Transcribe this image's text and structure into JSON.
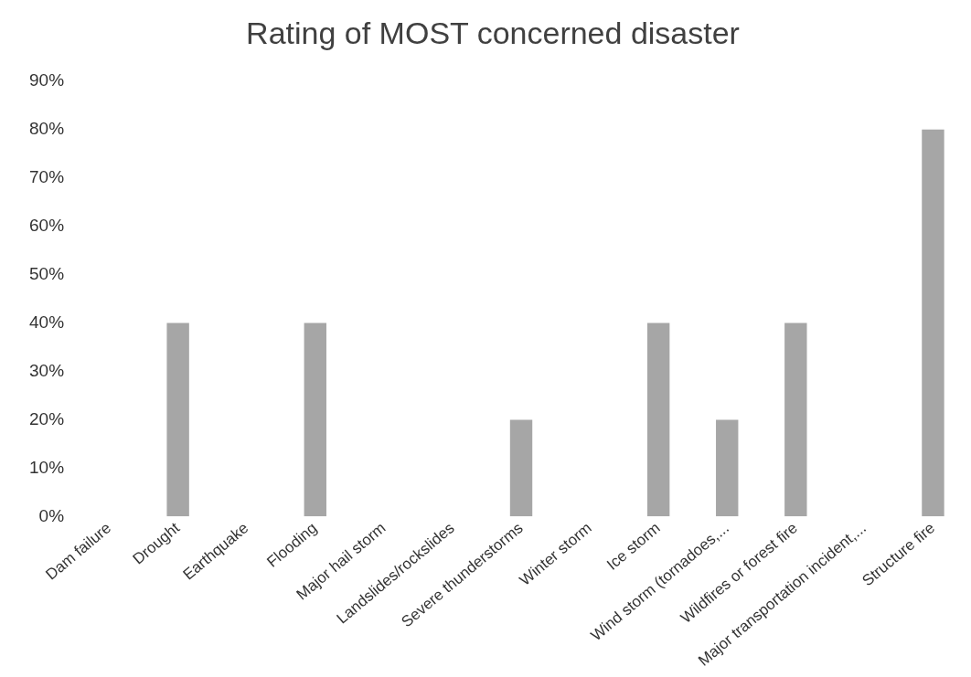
{
  "chart_data": {
    "type": "bar",
    "title": "Rating of MOST concerned disaster",
    "categories": [
      "Dam failure",
      "Drought",
      "Earthquake",
      "Flooding",
      "Major hail storm",
      "Landslides/rockslides",
      "Severe thunderstorms",
      "Winter storm",
      "Ice storm",
      "Wind storm (tornadoes,...",
      "Wildfires or forest fire",
      "Major transportation incident,...",
      "Structure fire"
    ],
    "values": [
      0,
      40,
      0,
      40,
      0,
      0,
      20,
      0,
      40,
      20,
      40,
      0,
      80
    ],
    "color": "#a6a6a6",
    "ylim": [
      0,
      90
    ],
    "yticks": [
      {
        "value": 0,
        "label": "0%"
      },
      {
        "value": 10,
        "label": "10%"
      },
      {
        "value": 20,
        "label": "20%"
      },
      {
        "value": 30,
        "label": "30%"
      },
      {
        "value": 40,
        "label": "40%"
      },
      {
        "value": 50,
        "label": "50%"
      },
      {
        "value": 60,
        "label": "60%"
      },
      {
        "value": 70,
        "label": "70%"
      },
      {
        "value": 80,
        "label": "80%"
      },
      {
        "value": 90,
        "label": "90%"
      }
    ],
    "grid": false,
    "legend": false
  }
}
